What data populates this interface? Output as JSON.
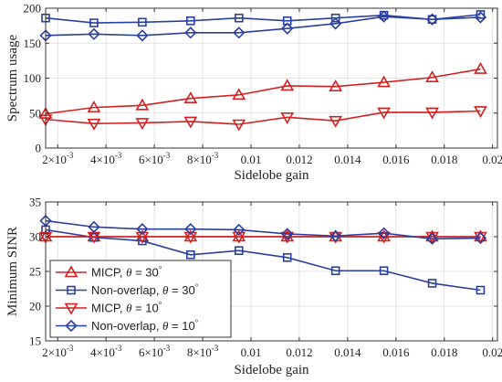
{
  "chart_data": [
    {
      "type": "line",
      "xlabel": "Sidelobe gain",
      "ylabel": "Spectrum usage",
      "ylim": [
        0,
        200
      ],
      "yticks": [
        0,
        50,
        100,
        150,
        200
      ],
      "xlim": [
        0.0015,
        0.0202
      ],
      "xticks": [
        0.002,
        0.004,
        0.006,
        0.008,
        0.01,
        0.012,
        0.014,
        0.016,
        0.018,
        0.02
      ],
      "xtick_labels": [
        [
          "2",
          "-3"
        ],
        [
          "4",
          "-3"
        ],
        [
          "6",
          "-3"
        ],
        [
          "8",
          "-3"
        ],
        [
          "0.01",
          ""
        ],
        [
          "0.012",
          ""
        ],
        [
          "0.014",
          ""
        ],
        [
          "0.016",
          ""
        ],
        [
          "0.018",
          ""
        ],
        [
          "0.02",
          ""
        ]
      ],
      "x": [
        0.0015,
        0.0035,
        0.0055,
        0.0075,
        0.0095,
        0.0115,
        0.0135,
        0.0155,
        0.0175,
        0.0195
      ],
      "grid": true,
      "series": [
        {
          "color": "#d42020",
          "marker": "triangle-up",
          "values": [
            49,
            58,
            61,
            71,
            76,
            89,
            88,
            94,
            101,
            113
          ]
        },
        {
          "color": "#2b3f9e",
          "marker": "square",
          "values": [
            186,
            179,
            180,
            182,
            186,
            182,
            186,
            190,
            184,
            191
          ]
        },
        {
          "color": "#d42020",
          "marker": "triangle-down",
          "values": [
            41,
            35,
            36,
            38,
            34,
            44,
            39,
            51,
            51,
            53
          ]
        },
        {
          "color": "#2b3f9e",
          "marker": "diamond",
          "values": [
            161,
            163,
            161,
            165,
            165,
            171,
            178,
            188,
            184,
            187
          ]
        }
      ]
    },
    {
      "type": "line",
      "xlabel": "Sidelobe gain",
      "ylabel": "Minimum SINR",
      "ylim": [
        15,
        35
      ],
      "yticks": [
        15,
        20,
        25,
        30,
        35
      ],
      "xlim": [
        0.0015,
        0.0202
      ],
      "xticks": [
        0.002,
        0.004,
        0.006,
        0.008,
        0.01,
        0.012,
        0.014,
        0.016,
        0.018,
        0.02
      ],
      "xtick_labels": [
        [
          "2",
          "-3"
        ],
        [
          "4",
          "-3"
        ],
        [
          "6",
          "-3"
        ],
        [
          "8",
          "-3"
        ],
        [
          "0.01",
          ""
        ],
        [
          "0.012",
          ""
        ],
        [
          "0.014",
          ""
        ],
        [
          "0.016",
          ""
        ],
        [
          "0.018",
          ""
        ],
        [
          "0.02",
          ""
        ]
      ],
      "x": [
        0.0015,
        0.0035,
        0.0055,
        0.0075,
        0.0095,
        0.0115,
        0.0135,
        0.0155,
        0.0175,
        0.0195
      ],
      "grid": true,
      "legend_position": "bottom-left",
      "series": [
        {
          "name": "MICP, θ = 30°",
          "label_prefix": "MICP, ",
          "label_theta": "θ",
          "label_suffix": " = 30",
          "label_deg": "°",
          "color": "#d42020",
          "marker": "triangle-up",
          "values": [
            30,
            30,
            30,
            30,
            30,
            30,
            30,
            30,
            30,
            30
          ]
        },
        {
          "name": "Non-overlap, θ = 30°",
          "label_prefix": "Non-overlap, ",
          "label_theta": "θ",
          "label_suffix": " = 30",
          "label_deg": "°",
          "color": "#2b3f9e",
          "marker": "square",
          "values": [
            31.0,
            29.9,
            29.4,
            27.4,
            28.0,
            27.0,
            25.1,
            25.1,
            23.3,
            22.3
          ]
        },
        {
          "name": "MICP, θ = 10°",
          "label_prefix": "MICP, ",
          "label_theta": "θ",
          "label_suffix": " = 10",
          "label_deg": "°",
          "color": "#d42020",
          "marker": "triangle-down",
          "values": [
            30,
            30,
            30,
            30,
            30,
            30,
            30,
            30,
            30,
            30
          ]
        },
        {
          "name": "Non-overlap, θ = 10°",
          "label_prefix": "Non-overlap, ",
          "label_theta": "θ",
          "label_suffix": " = 10",
          "label_deg": "°",
          "color": "#2b3f9e",
          "marker": "diamond",
          "values": [
            32.3,
            31.4,
            31.1,
            31.1,
            31.0,
            30.4,
            30.1,
            30.5,
            29.7,
            29.8
          ]
        }
      ]
    }
  ]
}
